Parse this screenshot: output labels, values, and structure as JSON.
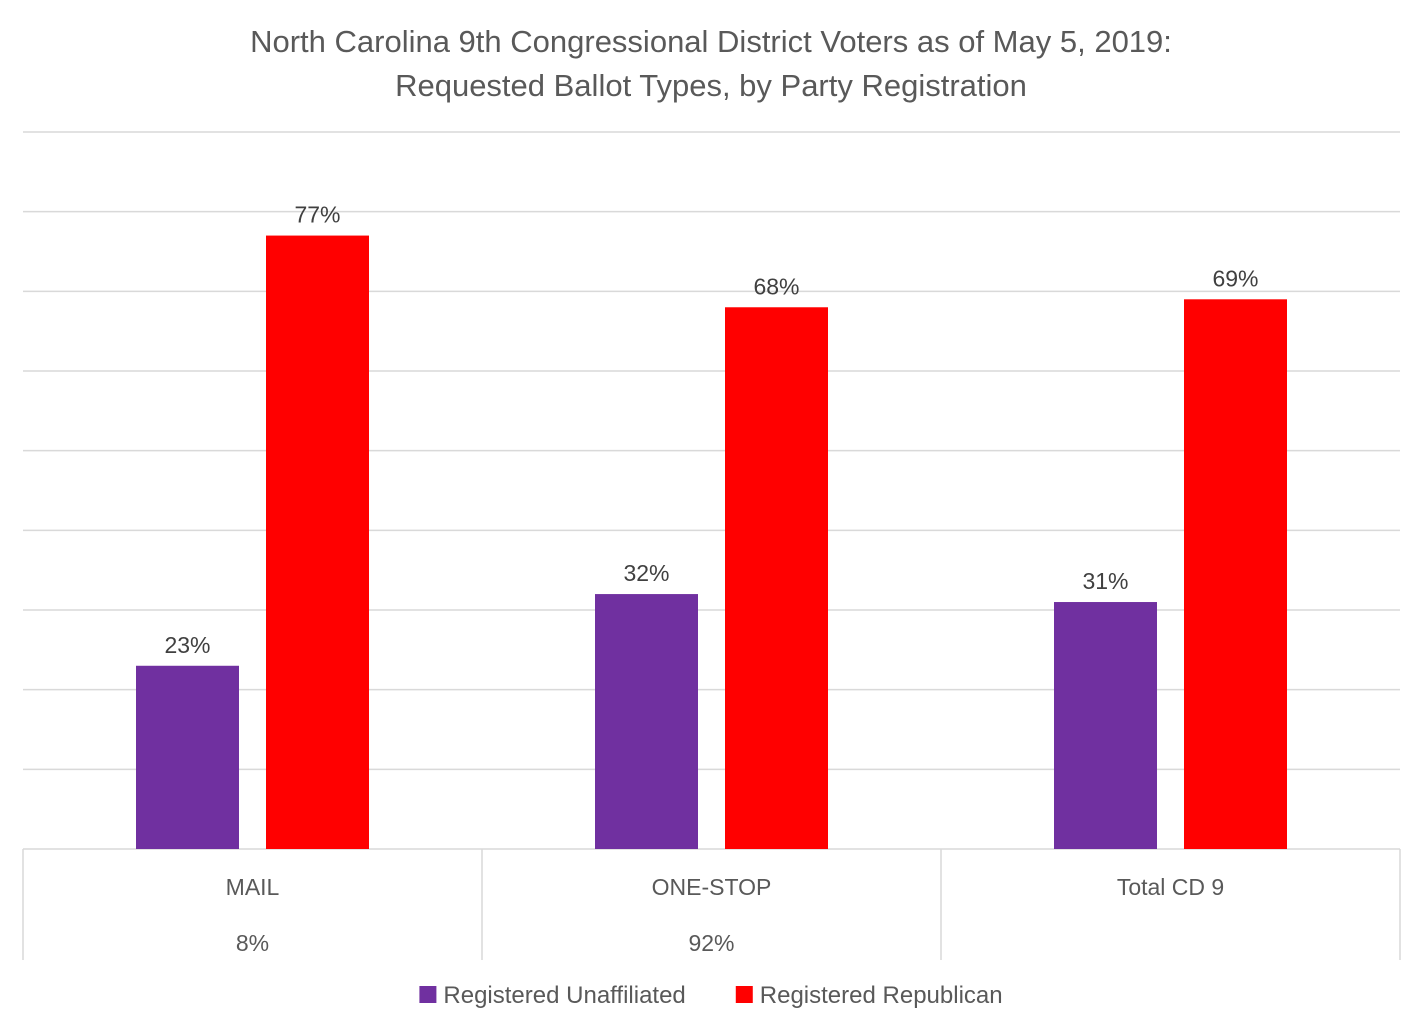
{
  "chart_data": {
    "type": "bar",
    "title_lines": [
      "North Carolina 9th Congressional District Voters as of May 5, 2019:",
      "Requested Ballot Types, by Party Registration"
    ],
    "categories": [
      "MAIL",
      "ONE-STOP",
      "Total CD 9"
    ],
    "category_sublabels": [
      "8%",
      "92%",
      ""
    ],
    "series": [
      {
        "name": "Registered Unaffiliated",
        "values": [
          23,
          32,
          31
        ],
        "labels": [
          "23%",
          "32%",
          "31%"
        ],
        "color": "#7030a0"
      },
      {
        "name": "Registered Republican",
        "values": [
          77,
          68,
          69
        ],
        "labels": [
          "77%",
          "68%",
          "69%"
        ],
        "color": "#ff0000"
      }
    ],
    "ylim": [
      0,
      90
    ],
    "y_gridline_step": 10,
    "grid": true,
    "legend_position": "bottom",
    "xlabel": "",
    "ylabel": ""
  }
}
